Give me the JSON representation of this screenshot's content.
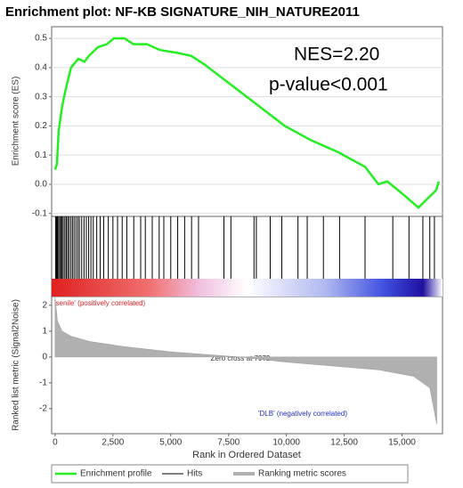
{
  "chart_data": [
    {
      "type": "line",
      "title": "Enrichment plot: NF-KB SIGNATURE_NIH_NATURE2011",
      "ylabel": "Enrichment score (ES)",
      "annotations": [
        "NES=2.20",
        "p-value<0.001"
      ],
      "x": [
        0,
        80,
        150,
        310,
        500,
        690,
        1000,
        1270,
        1460,
        1850,
        2230,
        2540,
        3000,
        3390,
        3970,
        4540,
        5310,
        5890,
        6470,
        7620,
        8780,
        9930,
        11090,
        12240,
        13400,
        13980,
        14360,
        15130,
        15710,
        16090,
        16480,
        16590
      ],
      "series": [
        {
          "name": "Enrichment profile",
          "color": "#22ee22",
          "values": [
            0.05,
            0.07,
            0.18,
            0.27,
            0.34,
            0.4,
            0.43,
            0.42,
            0.44,
            0.47,
            0.48,
            0.5,
            0.5,
            0.48,
            0.48,
            0.46,
            0.45,
            0.44,
            0.41,
            0.34,
            0.27,
            0.2,
            0.15,
            0.11,
            0.06,
            0.0,
            0.01,
            -0.04,
            -0.08,
            -0.05,
            -0.02,
            0.01
          ]
        }
      ],
      "xlim": [
        -150,
        16750
      ],
      "ylim": [
        -0.11,
        0.54
      ],
      "yticks": [
        0.5,
        0.4,
        0.3,
        0.2,
        0.1,
        {
          "value": 0,
          "label": "0.0"
        },
        -0.1
      ],
      "grid": true
    },
    {
      "type": "hits",
      "series": [
        {
          "name": "Hits",
          "color": "#000000",
          "x": [
            20,
            60,
            100,
            150,
            200,
            250,
            300,
            350,
            420,
            480,
            540,
            600,
            680,
            750,
            820,
            900,
            980,
            1050,
            1150,
            1250,
            1350,
            1450,
            1550,
            1650,
            1800,
            1950,
            2100,
            2300,
            2500,
            2700,
            2900,
            3100,
            3400,
            3700,
            3900,
            4200,
            4500,
            4700,
            5000,
            5300,
            5600,
            5900,
            6200,
            7300,
            7600,
            8600,
            8700,
            9300,
            9800,
            10500,
            10900,
            11600,
            12300,
            13400,
            14600,
            15300,
            15900,
            16200,
            16400
          ]
        }
      ],
      "xlim": [
        -150,
        16750
      ]
    },
    {
      "type": "area",
      "ylabel": "Ranked list metric (Signal2Noise)",
      "xlabel": "Rank in Ordered Dataset",
      "annotations": [
        "'senile' (positively correlated)",
        "Zero cross at 7972",
        "'DLB' (negatively correlated)"
      ],
      "x": [
        0,
        100,
        300,
        700,
        1500,
        3000,
        5000,
        7972,
        10000,
        12000,
        14000,
        15500,
        16200,
        16500
      ],
      "series": [
        {
          "name": "Ranking metric scores",
          "color": "#b0b0b0",
          "values": [
            2.3,
            1.4,
            1.0,
            0.8,
            0.6,
            0.4,
            0.2,
            0,
            -0.2,
            -0.35,
            -0.5,
            -0.75,
            -1.2,
            -2.6
          ]
        }
      ],
      "xlim": [
        -150,
        16750
      ],
      "ylim": [
        -2.97,
        2.34
      ],
      "yticks": [
        2,
        1,
        0,
        -1,
        -2
      ],
      "xticks": [
        0,
        {
          "value": 2500,
          "label": "2,500"
        },
        {
          "value": 5000,
          "label": "5,000"
        },
        {
          "value": 7500,
          "label": "7,500"
        },
        {
          "value": 10000,
          "label": "10,000"
        },
        {
          "value": 12500,
          "label": "12,500"
        },
        {
          "value": 15000,
          "label": "15,000"
        }
      ]
    }
  ]
}
